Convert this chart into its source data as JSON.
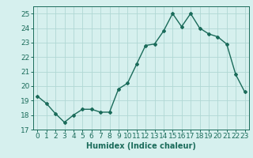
{
  "x": [
    0,
    1,
    2,
    3,
    4,
    5,
    6,
    7,
    8,
    9,
    10,
    11,
    12,
    13,
    14,
    15,
    16,
    17,
    18,
    19,
    20,
    21,
    22,
    23
  ],
  "y": [
    19.3,
    18.8,
    18.1,
    17.5,
    18.0,
    18.4,
    18.4,
    18.2,
    18.2,
    19.8,
    20.2,
    21.5,
    22.8,
    22.9,
    23.8,
    25.0,
    24.1,
    25.0,
    24.0,
    23.6,
    23.4,
    22.9,
    20.8,
    19.6
  ],
  "line_color": "#1a6b5a",
  "bg_color": "#d6f0ee",
  "grid_color": "#b0d8d4",
  "xlabel": "Humidex (Indice chaleur)",
  "xlim": [
    -0.5,
    23.5
  ],
  "ylim": [
    17,
    25.5
  ],
  "yticks": [
    17,
    18,
    19,
    20,
    21,
    22,
    23,
    24,
    25
  ],
  "xticks": [
    0,
    1,
    2,
    3,
    4,
    5,
    6,
    7,
    8,
    9,
    10,
    11,
    12,
    13,
    14,
    15,
    16,
    17,
    18,
    19,
    20,
    21,
    22,
    23
  ],
  "marker": "D",
  "markersize": 2.0,
  "linewidth": 1.0,
  "xlabel_fontsize": 7,
  "tick_fontsize": 6.5
}
